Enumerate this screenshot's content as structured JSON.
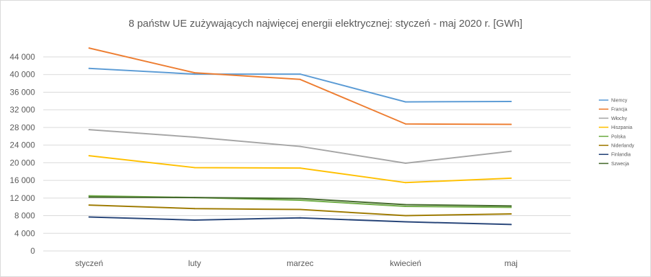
{
  "chart_data": {
    "type": "line",
    "title": "8 państw UE zużywających najwięcej energii elektrycznej: styczeń - maj 2020 r. [GWh]",
    "xlabel": "",
    "ylabel": "",
    "categories": [
      "styczeń",
      "luty",
      "marzec",
      "kwiecień",
      "maj"
    ],
    "ylim": [
      0,
      44000
    ],
    "yticks": [
      0,
      4000,
      8000,
      12000,
      16000,
      20000,
      24000,
      28000,
      32000,
      36000,
      40000,
      44000
    ],
    "ytick_labels": [
      "0",
      "4 000",
      "8 000",
      "12 000",
      "16 000",
      "20 000",
      "24 000",
      "28 000",
      "32 000",
      "36 000",
      "40 000",
      "44 000"
    ],
    "grid": true,
    "legend_position": "right",
    "series": [
      {
        "name": "Niemcy",
        "color": "#5b9bd5",
        "values": [
          41400,
          40100,
          40100,
          33800,
          33900
        ]
      },
      {
        "name": "Francja",
        "color": "#ed7d31",
        "values": [
          46000,
          40400,
          38900,
          28800,
          28700
        ]
      },
      {
        "name": "Włochy",
        "color": "#a5a5a5",
        "values": [
          27500,
          25800,
          23700,
          19900,
          22600
        ]
      },
      {
        "name": "Hiszpania",
        "color": "#ffc000",
        "values": [
          21600,
          18900,
          18800,
          15500,
          16500
        ]
      },
      {
        "name": "Polska",
        "color": "#70ad47",
        "values": [
          12500,
          12100,
          11500,
          10100,
          9900
        ]
      },
      {
        "name": "Niderlandy",
        "color": "#9e7a00",
        "values": [
          10400,
          9600,
          9400,
          8000,
          8400
        ]
      },
      {
        "name": "Finlandia",
        "color": "#264478",
        "values": [
          7700,
          7000,
          7500,
          6600,
          6000
        ]
      },
      {
        "name": "Szwecja",
        "color": "#43682b",
        "values": [
          12200,
          12100,
          11900,
          10500,
          10200
        ]
      }
    ]
  }
}
